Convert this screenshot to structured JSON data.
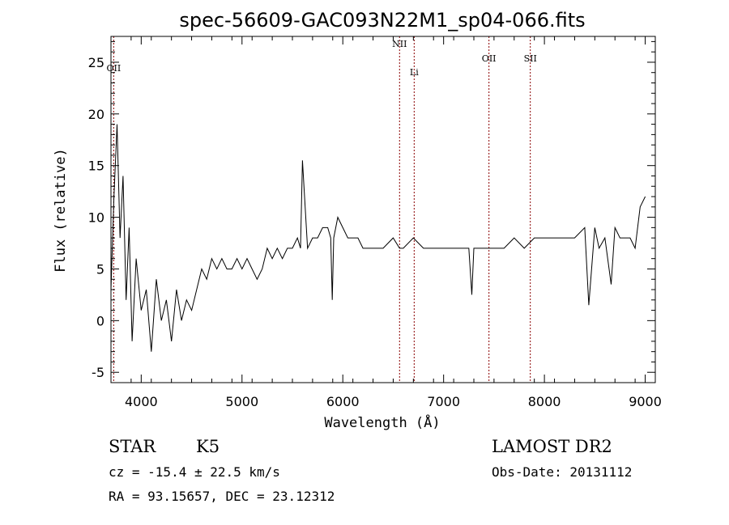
{
  "chart_data": {
    "type": "line",
    "title": "spec-56609-GAC093N22M1_sp04-066.fits",
    "xlabel": "Wavelength (Å)",
    "ylabel": "Flux (relative)",
    "xlim": [
      3700,
      9100
    ],
    "ylim": [
      -6,
      27.5
    ],
    "xticks": [
      4000,
      5000,
      6000,
      7000,
      8000,
      9000
    ],
    "yticks": [
      -5,
      0,
      5,
      10,
      15,
      20,
      25
    ],
    "grid": false,
    "series": [
      {
        "x": [
          3700,
          3730,
          3760,
          3790,
          3820,
          3850,
          3880,
          3910,
          3950,
          4000,
          4050,
          4100,
          4150,
          4200,
          4250,
          4300,
          4350,
          4400,
          4450,
          4500,
          4550,
          4600,
          4650,
          4700,
          4750,
          4800,
          4850,
          4900,
          4950,
          5000,
          5050,
          5100,
          5150,
          5200,
          5250,
          5300,
          5350,
          5400,
          5450,
          5500,
          5550,
          5580,
          5600,
          5650,
          5700,
          5750,
          5800,
          5850,
          5880,
          5895,
          5910,
          5950,
          6000,
          6050,
          6100,
          6150,
          6200,
          6300,
          6400,
          6500,
          6563,
          6600,
          6700,
          6800,
          6900,
          7000,
          7100,
          7200,
          7250,
          7280,
          7300,
          7400,
          7500,
          7600,
          7700,
          7800,
          7900,
          8000,
          8100,
          8200,
          8300,
          8400,
          8440,
          8500,
          8542,
          8600,
          8662,
          8700,
          8750,
          8800,
          8850,
          8900,
          8950,
          9000
        ],
        "y": [
          3,
          12,
          19,
          8,
          14,
          2,
          9,
          -2,
          6,
          1,
          3,
          -3,
          4,
          0,
          2,
          -2,
          3,
          0,
          2,
          1,
          3,
          5,
          4,
          6,
          5,
          6,
          5,
          5,
          6,
          5,
          6,
          5,
          4,
          5,
          7,
          6,
          7,
          6,
          7,
          7,
          8,
          7,
          15.5,
          7,
          8,
          8,
          9,
          9,
          8,
          2,
          8,
          10,
          9,
          8,
          8,
          8,
          7,
          7,
          7,
          8,
          7,
          7,
          8,
          7,
          7,
          7,
          7,
          7,
          7,
          2.5,
          7,
          7,
          7,
          7,
          8,
          7,
          8,
          8,
          8,
          8,
          8,
          9,
          1.5,
          9,
          7,
          8,
          3.5,
          9,
          8,
          8,
          8,
          7,
          11,
          12
        ]
      }
    ],
    "emission_lines": [
      {
        "label": "OII",
        "x": 3727
      },
      {
        "label": "NII",
        "x": 6563
      },
      {
        "label": "Li",
        "x": 6708
      },
      {
        "label": "OII",
        "x": 7450
      },
      {
        "label": "SII",
        "x": 7860
      }
    ]
  },
  "info": {
    "object_class": "STAR",
    "subclass": "K5",
    "survey": "LAMOST DR2",
    "redshift": "cz = -15.4 ± 22.5 km/s",
    "obs_date": "Obs-Date: 20131112",
    "coords": "RA =  93.15657, DEC =  23.12312"
  },
  "colors": {
    "spectrum": "#000000",
    "emission_line": "#8b0000"
  }
}
